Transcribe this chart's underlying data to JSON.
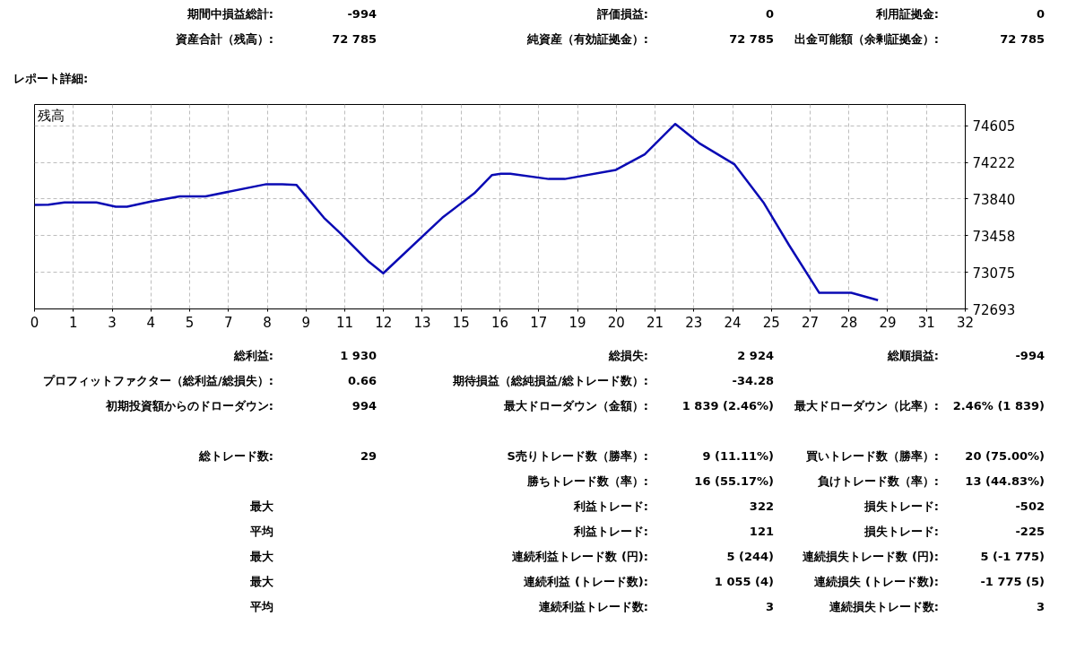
{
  "chart_data": {
    "type": "line",
    "title": "残高",
    "x": [
      0,
      0.48,
      1.03,
      2.13,
      2.79,
      3.18,
      4.0,
      4.99,
      5.88,
      7.97,
      8.52,
      9.01,
      9.95,
      10.5,
      11.49,
      11.99,
      14.02,
      15.12,
      15.73,
      16.03,
      16.36,
      17.68,
      18.23,
      19.99,
      20.98,
      22.03,
      22.85,
      24.07,
      25.06,
      25.94,
      26.98,
      28.08,
      29.0
    ],
    "series": [
      {
        "color": "#0a0ab4",
        "values": [
          73779,
          73782,
          73805,
          73805,
          73760,
          73760,
          73814,
          73868,
          73868,
          73995,
          73995,
          73986,
          73645,
          73487,
          73186,
          73065,
          73645,
          73900,
          74090,
          74103,
          74103,
          74049,
          74049,
          74144,
          74306,
          74624,
          74424,
          74201,
          73805,
          73360,
          72861,
          72861,
          72785
        ]
      }
    ],
    "xlim": [
      0,
      32
    ],
    "xticks": [
      0,
      {
        "value": 1.333,
        "label": "1"
      },
      {
        "value": 2.667,
        "label": "3"
      },
      4,
      {
        "value": 5.333,
        "label": "5"
      },
      {
        "value": 6.667,
        "label": "7"
      },
      8,
      {
        "value": 9.333,
        "label": "9"
      },
      {
        "value": 10.667,
        "label": "11"
      },
      12,
      {
        "value": 13.333,
        "label": "13"
      },
      {
        "value": 14.667,
        "label": "15"
      },
      16,
      {
        "value": 17.333,
        "label": "17"
      },
      {
        "value": 18.667,
        "label": "19"
      },
      20,
      {
        "value": 21.333,
        "label": "21"
      },
      {
        "value": 22.667,
        "label": "23"
      },
      24,
      {
        "value": 25.333,
        "label": "25"
      },
      {
        "value": 26.667,
        "label": "27"
      },
      28,
      {
        "value": 29.333,
        "label": "29"
      },
      {
        "value": 30.667,
        "label": "31"
      },
      32
    ],
    "ylim": [
      72693,
      74827
    ],
    "yticks": [
      72693,
      73075,
      73458,
      73840,
      74222,
      74605
    ],
    "grid": true,
    "line_style": "solid",
    "marker": "none",
    "annotations": [
      "期間中損益総計:",
      "-994",
      "評価損益:",
      "0",
      "利用証拠金:",
      "0",
      "資産合計（残高）:",
      "72 785",
      "純資産（有効証拠金）:",
      "72 785",
      "出金可能額（余剰証拠金）:",
      "72 785",
      "レポート詳細:",
      "総利益:",
      "1 930",
      "総損失:",
      "2 924",
      "総順損益:",
      "-994",
      "プロフィットファクター（総利益/総損失）:",
      "0.66",
      "期待損益（総純損益/総トレード数）:",
      "-34.28",
      "初期投資額からのドローダウン:",
      "994",
      "最大ドローダウン（金額）:",
      "1 839 (2.46%)",
      "最大ドローダウン（比率）:",
      "2.46% (1 839)",
      "総トレード数:",
      "29",
      "S売りトレード数（勝率）:",
      "9 (11.11%)",
      "買いトレード数（勝率）:",
      "20 (75.00%)",
      "勝ちトレード数（率）:",
      "16 (55.17%)",
      "負けトレード数（率）:",
      "13 (44.83%)",
      "最大",
      "利益トレード:",
      "322",
      "損失トレード:",
      "-502",
      "平均",
      "利益トレード:",
      "121",
      "損失トレード:",
      "-225",
      "最大",
      "連続利益トレード数 (円):",
      "5 (244)",
      "連続損失トレード数 (円):",
      "5 (-1 775)",
      "最大",
      "連続利益 (トレード数):",
      "1 055 (4)",
      "連続損失 (トレード数):",
      "-1 775 (5)",
      "平均",
      "連続利益トレード数:",
      "3",
      "連続損失トレード数:",
      "3"
    ]
  }
}
